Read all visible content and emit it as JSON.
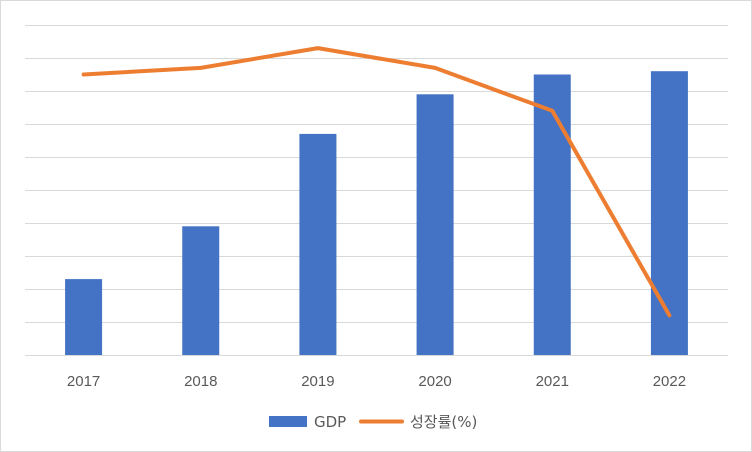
{
  "chart_data": {
    "type": "bar",
    "title": "",
    "xlabel": "",
    "ylabel": "",
    "categories": [
      "2017",
      "2018",
      "2019",
      "2020",
      "2021",
      "2022"
    ],
    "ylim": [
      0,
      100
    ],
    "grid": true,
    "legend_position": "bottom",
    "series": [
      {
        "name": "GDP",
        "type": "bar",
        "color": "#4472C4",
        "values": [
          23,
          39,
          67,
          79,
          85,
          86
        ]
      },
      {
        "name": "성장률(%)",
        "type": "line",
        "color": "#ED7D31",
        "values": [
          85,
          87,
          93,
          87,
          74,
          12
        ]
      }
    ]
  }
}
